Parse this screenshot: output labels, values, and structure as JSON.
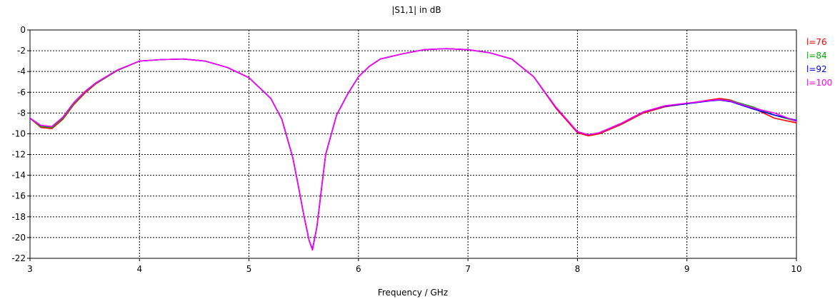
{
  "chart_data": {
    "type": "line",
    "title": "|S1,1| in dB",
    "xlabel": "Frequency / GHz",
    "ylabel": "",
    "xlim": [
      3,
      10
    ],
    "ylim": [
      -22,
      0
    ],
    "xticks": [
      3,
      4,
      5,
      6,
      7,
      8,
      9,
      10
    ],
    "yticks": [
      0,
      -2,
      -4,
      -6,
      -8,
      -10,
      -12,
      -14,
      -16,
      -18,
      -20,
      -22
    ],
    "grid": true,
    "legend_position": "right",
    "series": [
      {
        "name": "l=76",
        "color": "#ff0000",
        "x": [
          3.0,
          3.1,
          3.2,
          3.3,
          3.4,
          3.5,
          3.6,
          3.8,
          4.0,
          4.2,
          4.4,
          4.6,
          4.8,
          5.0,
          5.2,
          5.3,
          5.4,
          5.45,
          5.5,
          5.55,
          5.58,
          5.62,
          5.66,
          5.7,
          5.8,
          5.9,
          6.0,
          6.1,
          6.2,
          6.4,
          6.6,
          6.8,
          7.0,
          7.2,
          7.4,
          7.6,
          7.8,
          8.0,
          8.1,
          8.2,
          8.4,
          8.6,
          8.8,
          9.0,
          9.2,
          9.3,
          9.4,
          9.6,
          9.8,
          10.0
        ],
        "y": [
          -8.5,
          -9.4,
          -9.5,
          -8.6,
          -7.2,
          -6.1,
          -5.2,
          -3.9,
          -3.0,
          -2.85,
          -2.8,
          -3.0,
          -3.6,
          -4.6,
          -6.6,
          -8.6,
          -12.3,
          -15.0,
          -17.8,
          -20.3,
          -21.2,
          -19.0,
          -15.5,
          -12.0,
          -8.2,
          -6.2,
          -4.5,
          -3.5,
          -2.8,
          -2.3,
          -1.9,
          -1.8,
          -1.9,
          -2.2,
          -2.8,
          -4.5,
          -7.5,
          -9.9,
          -10.2,
          -10.0,
          -9.1,
          -8.0,
          -7.4,
          -7.1,
          -6.75,
          -6.6,
          -6.75,
          -7.5,
          -8.5,
          -8.95
        ]
      },
      {
        "name": "l=84",
        "color": "#00b000",
        "x": [
          3.0,
          3.1,
          3.2,
          3.3,
          3.4,
          3.5,
          3.6,
          3.8,
          4.0,
          4.2,
          4.4,
          4.6,
          4.8,
          5.0,
          5.2,
          5.3,
          5.4,
          5.45,
          5.5,
          5.55,
          5.58,
          5.62,
          5.66,
          5.7,
          5.8,
          5.9,
          6.0,
          6.1,
          6.2,
          6.4,
          6.6,
          6.8,
          7.0,
          7.2,
          7.4,
          7.6,
          7.8,
          8.0,
          8.1,
          8.2,
          8.4,
          8.6,
          8.8,
          9.0,
          9.2,
          9.3,
          9.4,
          9.6,
          9.8,
          10.0
        ],
        "y": [
          -8.5,
          -9.3,
          -9.4,
          -8.5,
          -7.1,
          -6.0,
          -5.15,
          -3.9,
          -3.0,
          -2.85,
          -2.8,
          -3.0,
          -3.6,
          -4.6,
          -6.6,
          -8.6,
          -12.3,
          -15.0,
          -17.8,
          -20.3,
          -21.1,
          -19.0,
          -15.5,
          -12.0,
          -8.2,
          -6.2,
          -4.5,
          -3.5,
          -2.8,
          -2.3,
          -1.9,
          -1.8,
          -1.9,
          -2.2,
          -2.8,
          -4.5,
          -7.4,
          -9.8,
          -10.1,
          -9.9,
          -9.0,
          -7.9,
          -7.3,
          -7.1,
          -6.8,
          -6.7,
          -6.8,
          -7.4,
          -8.2,
          -8.8
        ]
      },
      {
        "name": "l=92",
        "color": "#0000ff",
        "x": [
          3.0,
          3.1,
          3.2,
          3.3,
          3.4,
          3.5,
          3.6,
          3.8,
          4.0,
          4.2,
          4.4,
          4.6,
          4.8,
          5.0,
          5.2,
          5.3,
          5.4,
          5.45,
          5.5,
          5.55,
          5.58,
          5.62,
          5.66,
          5.7,
          5.8,
          5.9,
          6.0,
          6.1,
          6.2,
          6.4,
          6.6,
          6.8,
          7.0,
          7.2,
          7.4,
          7.6,
          7.8,
          8.0,
          8.1,
          8.2,
          8.4,
          8.6,
          8.8,
          9.0,
          9.2,
          9.3,
          9.4,
          9.6,
          9.8,
          10.0
        ],
        "y": [
          -8.5,
          -9.2,
          -9.3,
          -8.4,
          -7.0,
          -5.95,
          -5.1,
          -3.85,
          -3.0,
          -2.85,
          -2.8,
          -3.0,
          -3.6,
          -4.6,
          -6.6,
          -8.6,
          -12.3,
          -15.0,
          -17.8,
          -20.3,
          -21.1,
          -19.0,
          -15.5,
          -12.0,
          -8.2,
          -6.2,
          -4.5,
          -3.5,
          -2.8,
          -2.3,
          -1.9,
          -1.8,
          -1.9,
          -2.2,
          -2.8,
          -4.5,
          -7.4,
          -9.8,
          -10.1,
          -9.9,
          -9.0,
          -7.9,
          -7.35,
          -7.1,
          -6.85,
          -6.75,
          -6.9,
          -7.6,
          -8.2,
          -8.7
        ]
      },
      {
        "name": "l=100",
        "color": "#ff00ff",
        "x": [
          3.0,
          3.1,
          3.2,
          3.3,
          3.4,
          3.5,
          3.6,
          3.8,
          4.0,
          4.2,
          4.4,
          4.6,
          4.8,
          5.0,
          5.2,
          5.3,
          5.4,
          5.45,
          5.5,
          5.55,
          5.58,
          5.62,
          5.66,
          5.7,
          5.8,
          5.9,
          6.0,
          6.1,
          6.2,
          6.4,
          6.6,
          6.8,
          7.0,
          7.2,
          7.4,
          7.6,
          7.8,
          8.0,
          8.1,
          8.2,
          8.4,
          8.6,
          8.8,
          9.0,
          9.2,
          9.3,
          9.4,
          9.6,
          9.8,
          10.0
        ],
        "y": [
          -8.5,
          -9.2,
          -9.3,
          -8.4,
          -7.0,
          -5.95,
          -5.1,
          -3.85,
          -3.0,
          -2.85,
          -2.8,
          -3.0,
          -3.6,
          -4.6,
          -6.6,
          -8.6,
          -12.3,
          -15.0,
          -17.8,
          -20.3,
          -21.2,
          -19.0,
          -15.5,
          -12.0,
          -8.2,
          -6.2,
          -4.5,
          -3.5,
          -2.8,
          -2.3,
          -1.9,
          -1.8,
          -1.9,
          -2.2,
          -2.8,
          -4.5,
          -7.4,
          -9.8,
          -10.1,
          -9.9,
          -9.0,
          -7.9,
          -7.3,
          -7.05,
          -6.8,
          -6.7,
          -6.85,
          -7.5,
          -8.0,
          -8.8
        ]
      }
    ]
  }
}
